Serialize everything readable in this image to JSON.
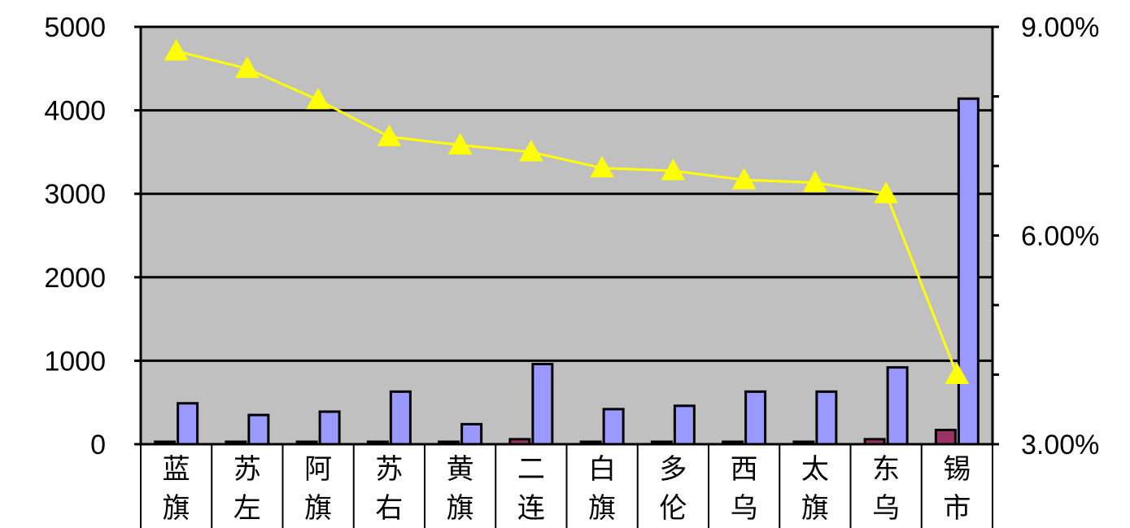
{
  "chart_data": {
    "type": "bar",
    "categories": [
      [
        "蓝",
        "旗"
      ],
      [
        "苏",
        "左"
      ],
      [
        "阿",
        "旗"
      ],
      [
        "苏",
        "右"
      ],
      [
        "黄",
        "旗"
      ],
      [
        "二",
        "连"
      ],
      [
        "白",
        "旗"
      ],
      [
        "多",
        "伦"
      ],
      [
        "西",
        "乌"
      ],
      [
        "太",
        "旗"
      ],
      [
        "东",
        "乌"
      ],
      [
        "锡",
        "市"
      ]
    ],
    "y_left": {
      "ticks": [
        "0",
        "1000",
        "2000",
        "3000",
        "4000",
        "5000"
      ],
      "tick_values": [
        0,
        1000,
        2000,
        3000,
        4000,
        5000
      ],
      "ylim": [
        0,
        5000
      ]
    },
    "y_right": {
      "ticks": [
        "3.00%",
        "6.00%",
        "9.00%"
      ],
      "tick_values": [
        3,
        6,
        9
      ],
      "ylim": [
        3,
        9
      ],
      "minor_step": 1
    },
    "grid": true,
    "series": [
      {
        "axis": "left",
        "kind": "bar",
        "color": "#993366",
        "values": [
          15,
          10,
          15,
          15,
          15,
          60,
          15,
          10,
          15,
          15,
          60,
          170
        ]
      },
      {
        "axis": "left",
        "kind": "bar",
        "color": "#9999ff",
        "values": [
          490,
          350,
          390,
          630,
          240,
          960,
          420,
          460,
          630,
          630,
          920,
          4140
        ]
      },
      {
        "axis": "right",
        "kind": "line",
        "color": "#ffff00",
        "marker": "triangle",
        "values": [
          8.65,
          8.4,
          7.95,
          7.42,
          7.3,
          7.2,
          6.97,
          6.93,
          6.8,
          6.76,
          6.6,
          4.0
        ]
      }
    ],
    "colors": {
      "plot_background": "#c0c0c0",
      "grid": "#000000",
      "axis": "#000000"
    }
  }
}
